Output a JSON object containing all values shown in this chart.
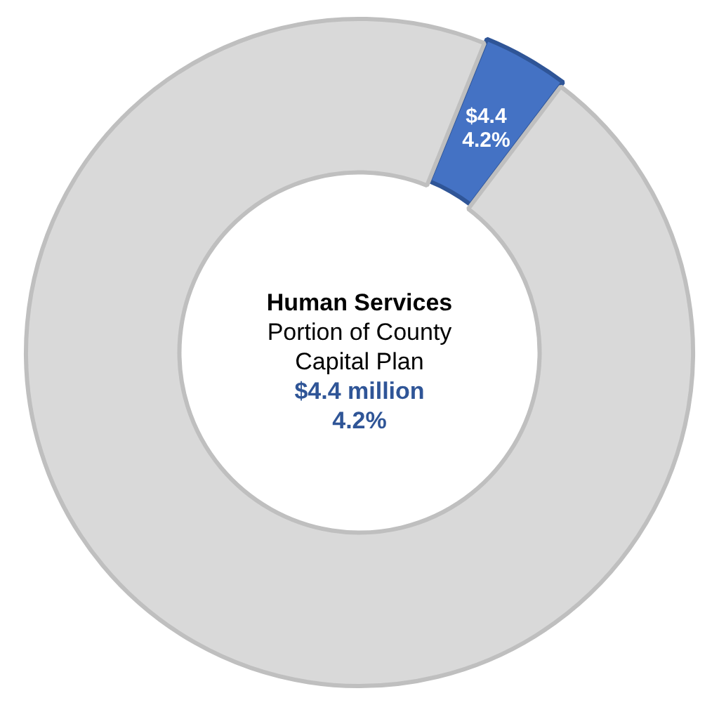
{
  "chart_data": {
    "type": "donut",
    "title": "Human Services",
    "subtitle": "Portion of County Capital Plan",
    "annotations": [
      "$4.4 million",
      "4.2%"
    ],
    "categories": [
      null,
      null
    ],
    "values": [
      4.2,
      95.8
    ],
    "colors": [
      "#4472c4",
      "#d9d9d9"
    ],
    "value_labels": [
      "$4.4\n4.2%",
      null
    ],
    "legend": false
  }
}
